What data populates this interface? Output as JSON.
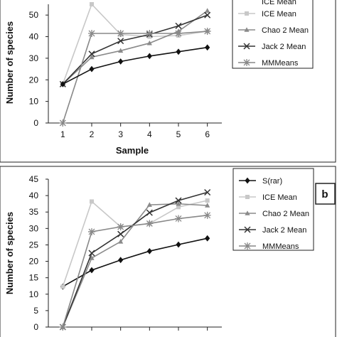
{
  "chart_data": [
    {
      "type": "line",
      "panel_label": "",
      "xlabel": "Sample",
      "ylabel": "Number of species",
      "x": [
        1,
        2,
        3,
        4,
        5,
        6
      ],
      "xlim": [
        0.5,
        6.5
      ],
      "ylim": [
        0,
        55
      ],
      "yticks": [
        0,
        10,
        20,
        30,
        40,
        50
      ],
      "grid": false,
      "legend_position": "right",
      "series": [
        {
          "name": "ICE Mean",
          "values": [
            18,
            55,
            41,
            40,
            40.5,
            42.5
          ],
          "color": "#c8c8c8",
          "marker": "square"
        },
        {
          "name": "Chao 2 Mean",
          "values": [
            18,
            30.5,
            33.5,
            37,
            42.5,
            52
          ],
          "color": "#8a8a8a",
          "marker": "triangle"
        },
        {
          "name": "Jack 2 Mean",
          "values": [
            18,
            32,
            38,
            41,
            45,
            50
          ],
          "color": "#333333",
          "marker": "x"
        },
        {
          "name": "MMMeans",
          "values": [
            0,
            41.5,
            41.5,
            41.5,
            41.5,
            42.5
          ],
          "color": "#888888",
          "marker": "star"
        },
        {
          "name": "",
          "values": [
            18,
            25,
            28.5,
            31,
            33,
            35
          ],
          "color": "#111111",
          "marker": "diamond"
        }
      ]
    },
    {
      "type": "line",
      "panel_label": "b",
      "xlabel": "",
      "ylabel": "Number of species",
      "x": [
        1,
        2,
        3,
        4,
        5,
        6
      ],
      "xlim": [
        0.5,
        6.5
      ],
      "ylim": [
        0,
        45
      ],
      "yticks": [
        0,
        5,
        10,
        15,
        20,
        25,
        30,
        35,
        40,
        45
      ],
      "grid": false,
      "legend_position": "right",
      "series": [
        {
          "name": "S(rar)",
          "values": [
            12.3,
            17.3,
            20.4,
            23.1,
            25.1,
            27
          ],
          "color": "#111111",
          "marker": "diamond"
        },
        {
          "name": "ICE Mean",
          "values": [
            12.3,
            38.2,
            30.5,
            31.5,
            36.5,
            38.5
          ],
          "color": "#c8c8c8",
          "marker": "square"
        },
        {
          "name": "Chao 2 Mean",
          "values": [
            0,
            21,
            26,
            37.2,
            37.5,
            37
          ],
          "color": "#8a8a8a",
          "marker": "triangle"
        },
        {
          "name": "Jack 2 Mean",
          "values": [
            0,
            22.5,
            28.3,
            34.8,
            38.5,
            41
          ],
          "color": "#333333",
          "marker": "x"
        },
        {
          "name": "MMMeans",
          "values": [
            0,
            29,
            30.5,
            31.5,
            33,
            34
          ],
          "color": "#888888",
          "marker": "star"
        }
      ]
    }
  ],
  "legends": [
    {
      "items": [
        "ICE Mean",
        "Chao 2 Mean",
        "Jack 2 Mean",
        "MMMeans"
      ],
      "top_partial": "ICE Mean"
    },
    {
      "items": [
        "S(rar)",
        "ICE Mean",
        "Chao 2 Mean",
        "Jack 2 Mean",
        "MMMeans"
      ]
    }
  ]
}
